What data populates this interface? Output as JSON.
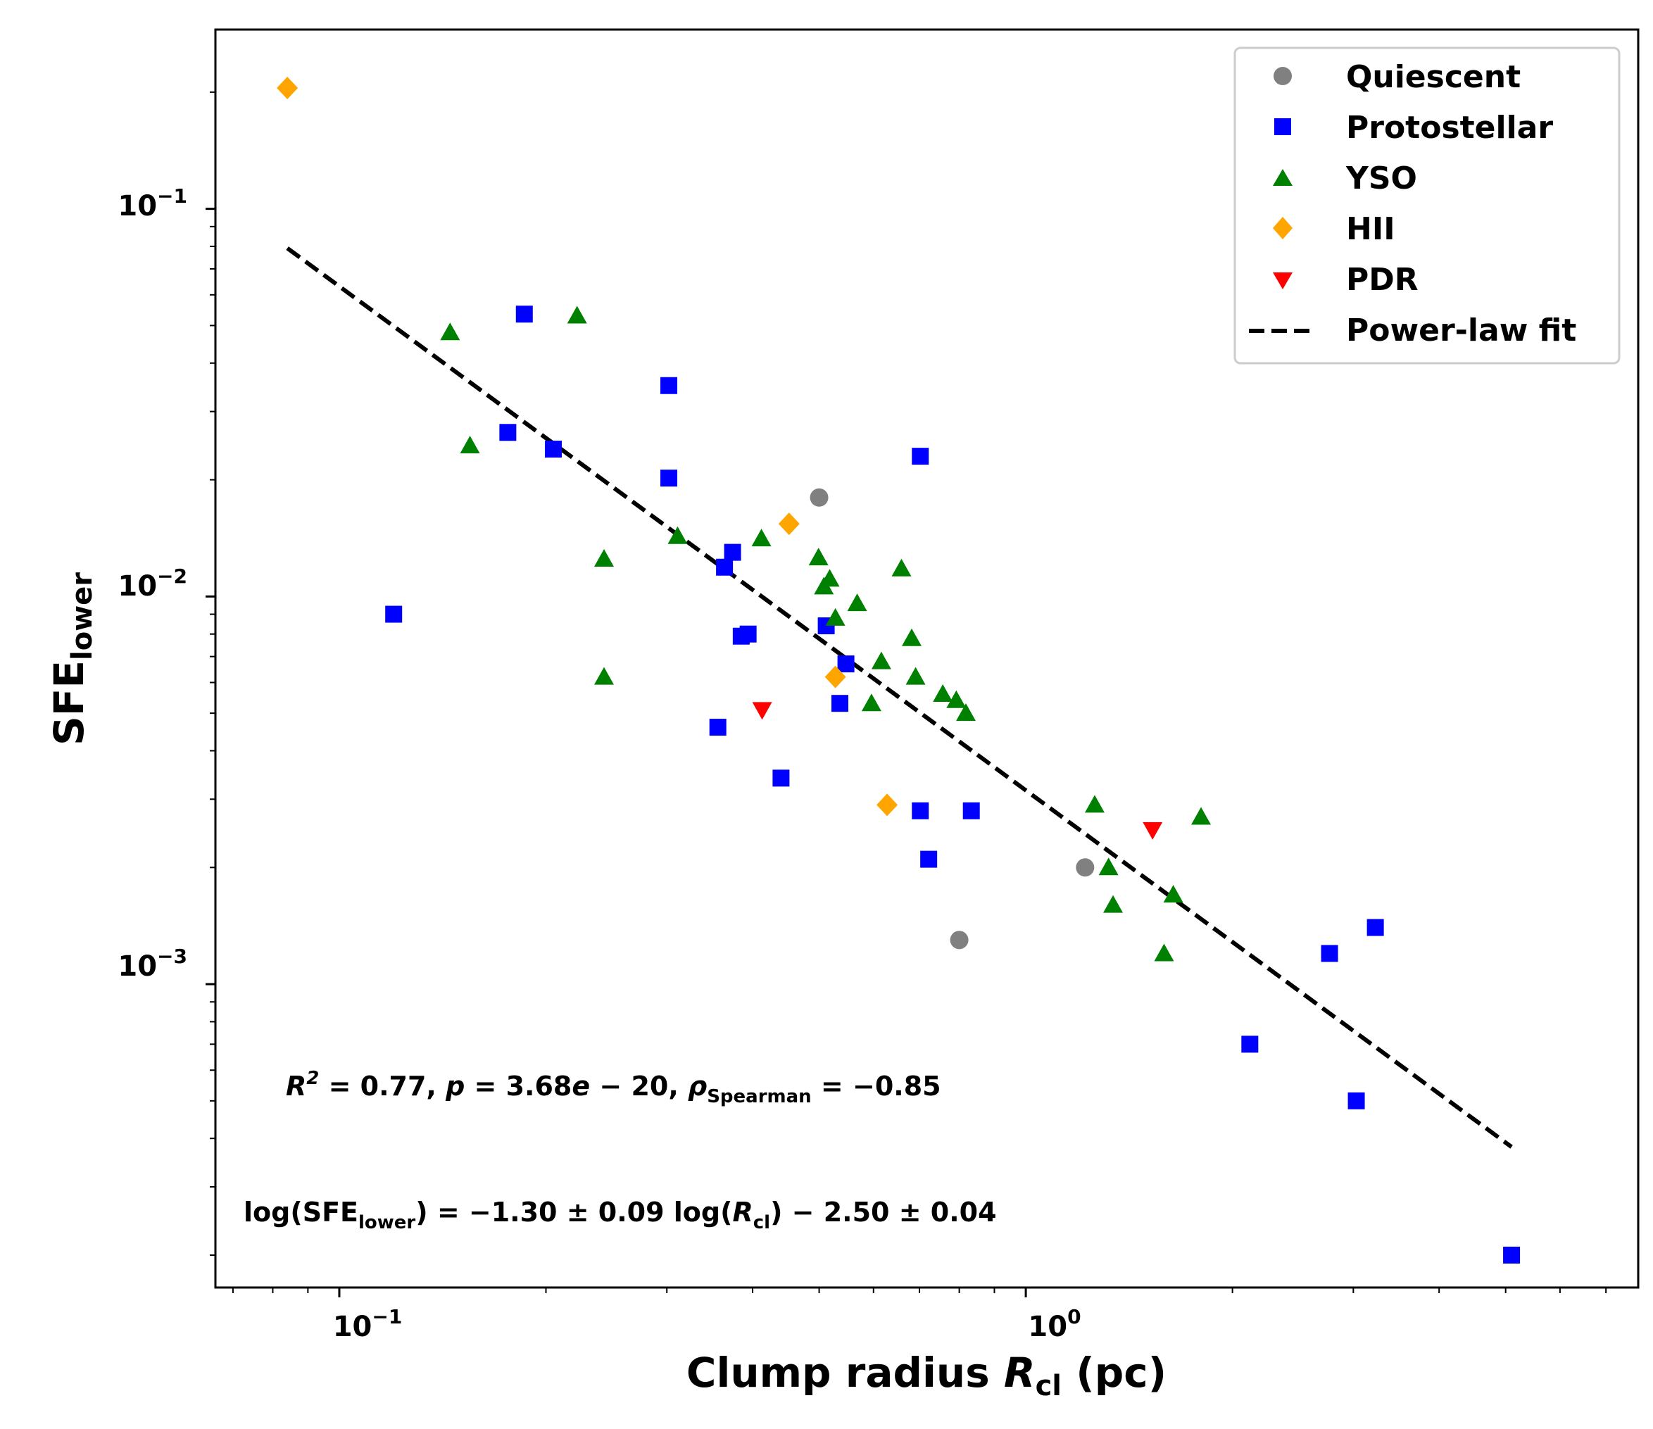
{
  "chart_data": {
    "type": "scatter",
    "x_scale": "log",
    "y_scale": "log",
    "xlim": [
      0.066,
      7.8
    ],
    "ylim": [
      0.000165,
      0.29
    ],
    "xlabel": {
      "main": "Clump radius ",
      "var": "R",
      "sub": "cl",
      "unit": " (pc)"
    },
    "ylabel": {
      "main": "SFE",
      "sub": "lower"
    },
    "x_ticks": [
      {
        "base": "10",
        "exp": "−1",
        "value": 0.1
      },
      {
        "base": "10",
        "exp": "0",
        "value": 1
      }
    ],
    "y_ticks": [
      {
        "base": "10",
        "exp": "−1",
        "value": 0.1
      },
      {
        "base": "10",
        "exp": "−2",
        "value": 0.01
      },
      {
        "base": "10",
        "exp": "−3",
        "value": 0.001
      }
    ],
    "grid": false,
    "legend_position": "top-right",
    "legend": [
      "Quiescent",
      "Protostellar",
      "YSO",
      "HII",
      "PDR",
      "Power-law fit"
    ],
    "series": [
      {
        "name": "Quiescent",
        "marker": "circle",
        "color": "#808080",
        "points": [
          [
            0.5,
            0.018
          ],
          [
            0.8,
            0.0013
          ],
          [
            1.22,
            0.002
          ]
        ]
      },
      {
        "name": "Protostellar",
        "marker": "square",
        "color": "#0000ff",
        "points": [
          [
            0.12,
            0.009
          ],
          [
            0.176,
            0.0265
          ],
          [
            0.186,
            0.0535
          ],
          [
            0.205,
            0.024
          ],
          [
            0.302,
            0.035
          ],
          [
            0.302,
            0.0202
          ],
          [
            0.356,
            0.0046
          ],
          [
            0.364,
            0.0119
          ],
          [
            0.374,
            0.013
          ],
          [
            0.385,
            0.0079
          ],
          [
            0.394,
            0.008
          ],
          [
            0.44,
            0.0034
          ],
          [
            0.512,
            0.0084
          ],
          [
            0.536,
            0.0053
          ],
          [
            0.547,
            0.0067
          ],
          [
            0.702,
            0.023
          ],
          [
            0.702,
            0.0028
          ],
          [
            0.722,
            0.0021
          ],
          [
            0.833,
            0.0028
          ],
          [
            2.12,
            0.0007
          ],
          [
            2.77,
            0.0012
          ],
          [
            3.03,
            0.0005
          ],
          [
            3.23,
            0.0014
          ],
          [
            5.1,
            0.0002
          ]
        ]
      },
      {
        "name": "YSO",
        "marker": "triangle-up",
        "color": "#008000",
        "points": [
          [
            0.145,
            0.048
          ],
          [
            0.155,
            0.0245
          ],
          [
            0.222,
            0.053
          ],
          [
            0.243,
            0.0125
          ],
          [
            0.243,
            0.0062
          ],
          [
            0.311,
            0.0143
          ],
          [
            0.412,
            0.0141
          ],
          [
            0.499,
            0.0126
          ],
          [
            0.508,
            0.0106
          ],
          [
            0.518,
            0.0111
          ],
          [
            0.528,
            0.0088
          ],
          [
            0.568,
            0.0096
          ],
          [
            0.596,
            0.0053
          ],
          [
            0.616,
            0.0068
          ],
          [
            0.659,
            0.0118
          ],
          [
            0.682,
            0.0078
          ],
          [
            0.691,
            0.0062
          ],
          [
            0.757,
            0.0056
          ],
          [
            0.792,
            0.0054
          ],
          [
            0.818,
            0.005
          ],
          [
            1.26,
            0.0029
          ],
          [
            1.32,
            0.002
          ],
          [
            1.34,
            0.0016
          ],
          [
            1.64,
            0.0017
          ],
          [
            1.59,
            0.0012
          ],
          [
            1.8,
            0.0027
          ]
        ]
      },
      {
        "name": "HII",
        "marker": "diamond",
        "color": "#ffa500",
        "points": [
          [
            0.084,
            0.205
          ],
          [
            0.452,
            0.0154
          ],
          [
            0.528,
            0.0062
          ],
          [
            0.628,
            0.0029
          ]
        ]
      },
      {
        "name": "PDR",
        "marker": "triangle-down",
        "color": "#ff0000",
        "points": [
          [
            0.413,
            0.0051
          ],
          [
            1.53,
            0.0025
          ]
        ]
      }
    ],
    "fit": {
      "name": "Power-law fit",
      "slope": -1.3,
      "intercept": -2.5,
      "x_range": [
        0.084,
        5.1
      ],
      "style": "dashed",
      "color": "#000000"
    },
    "annotations": {
      "stats": {
        "r2": "R",
        "r2sup": "2",
        "r2rest": " = 0.77, ",
        "p": "p",
        "prest": " = 3.68",
        "e": "e",
        "erest": " − 20, ",
        "rho": "ρ",
        "rhosub": "Spearman",
        "rhorest": " = −0.85"
      },
      "equation": {
        "a": "log(SFE",
        "asub": "lower",
        "b": ") = −1.30 ± 0.09 log(",
        "var": "R",
        "varsub": "cl",
        "c": ") − 2.50 ± 0.04"
      }
    }
  }
}
